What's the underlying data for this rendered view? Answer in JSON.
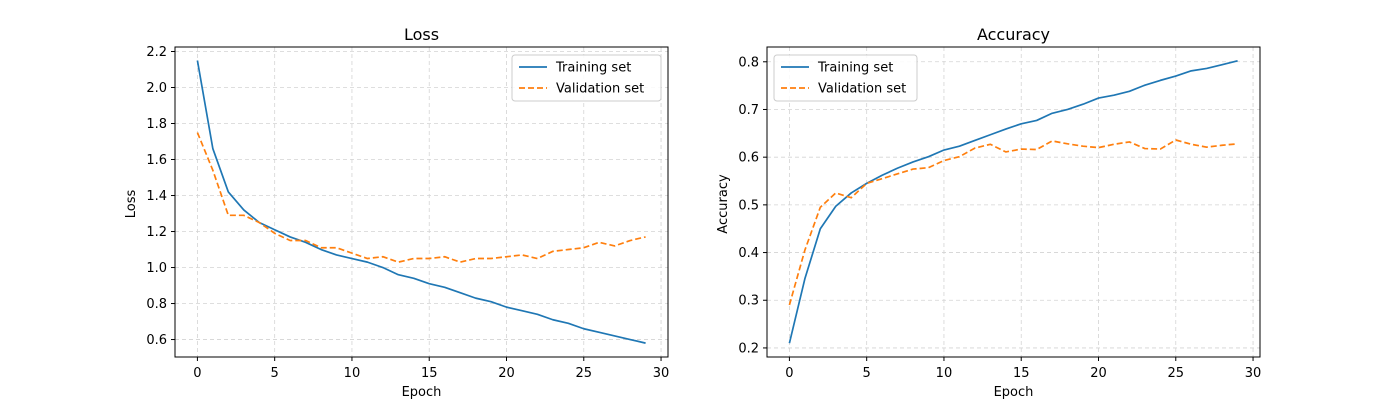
{
  "chart_data": [
    {
      "type": "line",
      "title": "Loss",
      "xlabel": "Epoch",
      "ylabel": "Loss",
      "xlim": [
        -1.45,
        30.45
      ],
      "ylim": [
        0.503,
        2.225
      ],
      "xticks": [
        0,
        5,
        10,
        15,
        20,
        25,
        30
      ],
      "yticks": [
        0.6,
        0.8,
        1.0,
        1.2,
        1.4,
        1.6,
        1.8,
        2.0,
        2.2
      ],
      "ytick_decimals": 1,
      "grid": true,
      "legend_position": "top-right",
      "x": [
        0,
        1,
        2,
        3,
        4,
        5,
        6,
        7,
        8,
        9,
        10,
        11,
        12,
        13,
        14,
        15,
        16,
        17,
        18,
        19,
        20,
        21,
        22,
        23,
        24,
        25,
        26,
        27,
        28,
        29
      ],
      "series": [
        {
          "name": "Training set",
          "style": "solid",
          "color": "#1f77b4",
          "values": [
            2.15,
            1.66,
            1.42,
            1.32,
            1.25,
            1.21,
            1.17,
            1.14,
            1.1,
            1.07,
            1.05,
            1.03,
            1.0,
            0.96,
            0.94,
            0.91,
            0.89,
            0.86,
            0.83,
            0.81,
            0.78,
            0.76,
            0.74,
            0.71,
            0.69,
            0.66,
            0.64,
            0.62,
            0.6,
            0.58
          ]
        },
        {
          "name": "Validation set",
          "style": "dashed",
          "color": "#ff7f0e",
          "values": [
            1.75,
            1.54,
            1.29,
            1.29,
            1.25,
            1.19,
            1.15,
            1.15,
            1.11,
            1.11,
            1.08,
            1.05,
            1.06,
            1.03,
            1.05,
            1.05,
            1.06,
            1.03,
            1.05,
            1.05,
            1.06,
            1.07,
            1.05,
            1.09,
            1.1,
            1.11,
            1.14,
            1.12,
            1.15,
            1.17
          ]
        }
      ]
    },
    {
      "type": "line",
      "title": "Accuracy",
      "xlabel": "Epoch",
      "ylabel": "Accuracy",
      "xlim": [
        -1.45,
        30.45
      ],
      "ylim": [
        0.181,
        0.831
      ],
      "xticks": [
        0,
        5,
        10,
        15,
        20,
        25,
        30
      ],
      "yticks": [
        0.2,
        0.3,
        0.4,
        0.5,
        0.6,
        0.7,
        0.8
      ],
      "ytick_decimals": 1,
      "grid": true,
      "legend_position": "top-left",
      "x": [
        0,
        1,
        2,
        3,
        4,
        5,
        6,
        7,
        8,
        9,
        10,
        11,
        12,
        13,
        14,
        15,
        16,
        17,
        18,
        19,
        20,
        21,
        22,
        23,
        24,
        25,
        26,
        27,
        28,
        29
      ],
      "series": [
        {
          "name": "Training set",
          "style": "solid",
          "color": "#1f77b4",
          "values": [
            0.21,
            0.345,
            0.45,
            0.497,
            0.525,
            0.545,
            0.562,
            0.577,
            0.59,
            0.601,
            0.615,
            0.623,
            0.635,
            0.647,
            0.659,
            0.67,
            0.677,
            0.692,
            0.7,
            0.711,
            0.724,
            0.73,
            0.738,
            0.751,
            0.761,
            0.77,
            0.781,
            0.786,
            0.794,
            0.802
          ]
        },
        {
          "name": "Validation set",
          "style": "dashed",
          "color": "#ff7f0e",
          "values": [
            0.29,
            0.405,
            0.495,
            0.525,
            0.515,
            0.545,
            0.555,
            0.565,
            0.575,
            0.578,
            0.593,
            0.601,
            0.619,
            0.627,
            0.611,
            0.617,
            0.616,
            0.634,
            0.628,
            0.623,
            0.62,
            0.627,
            0.632,
            0.618,
            0.617,
            0.636,
            0.627,
            0.621,
            0.625,
            0.628
          ]
        }
      ]
    }
  ]
}
